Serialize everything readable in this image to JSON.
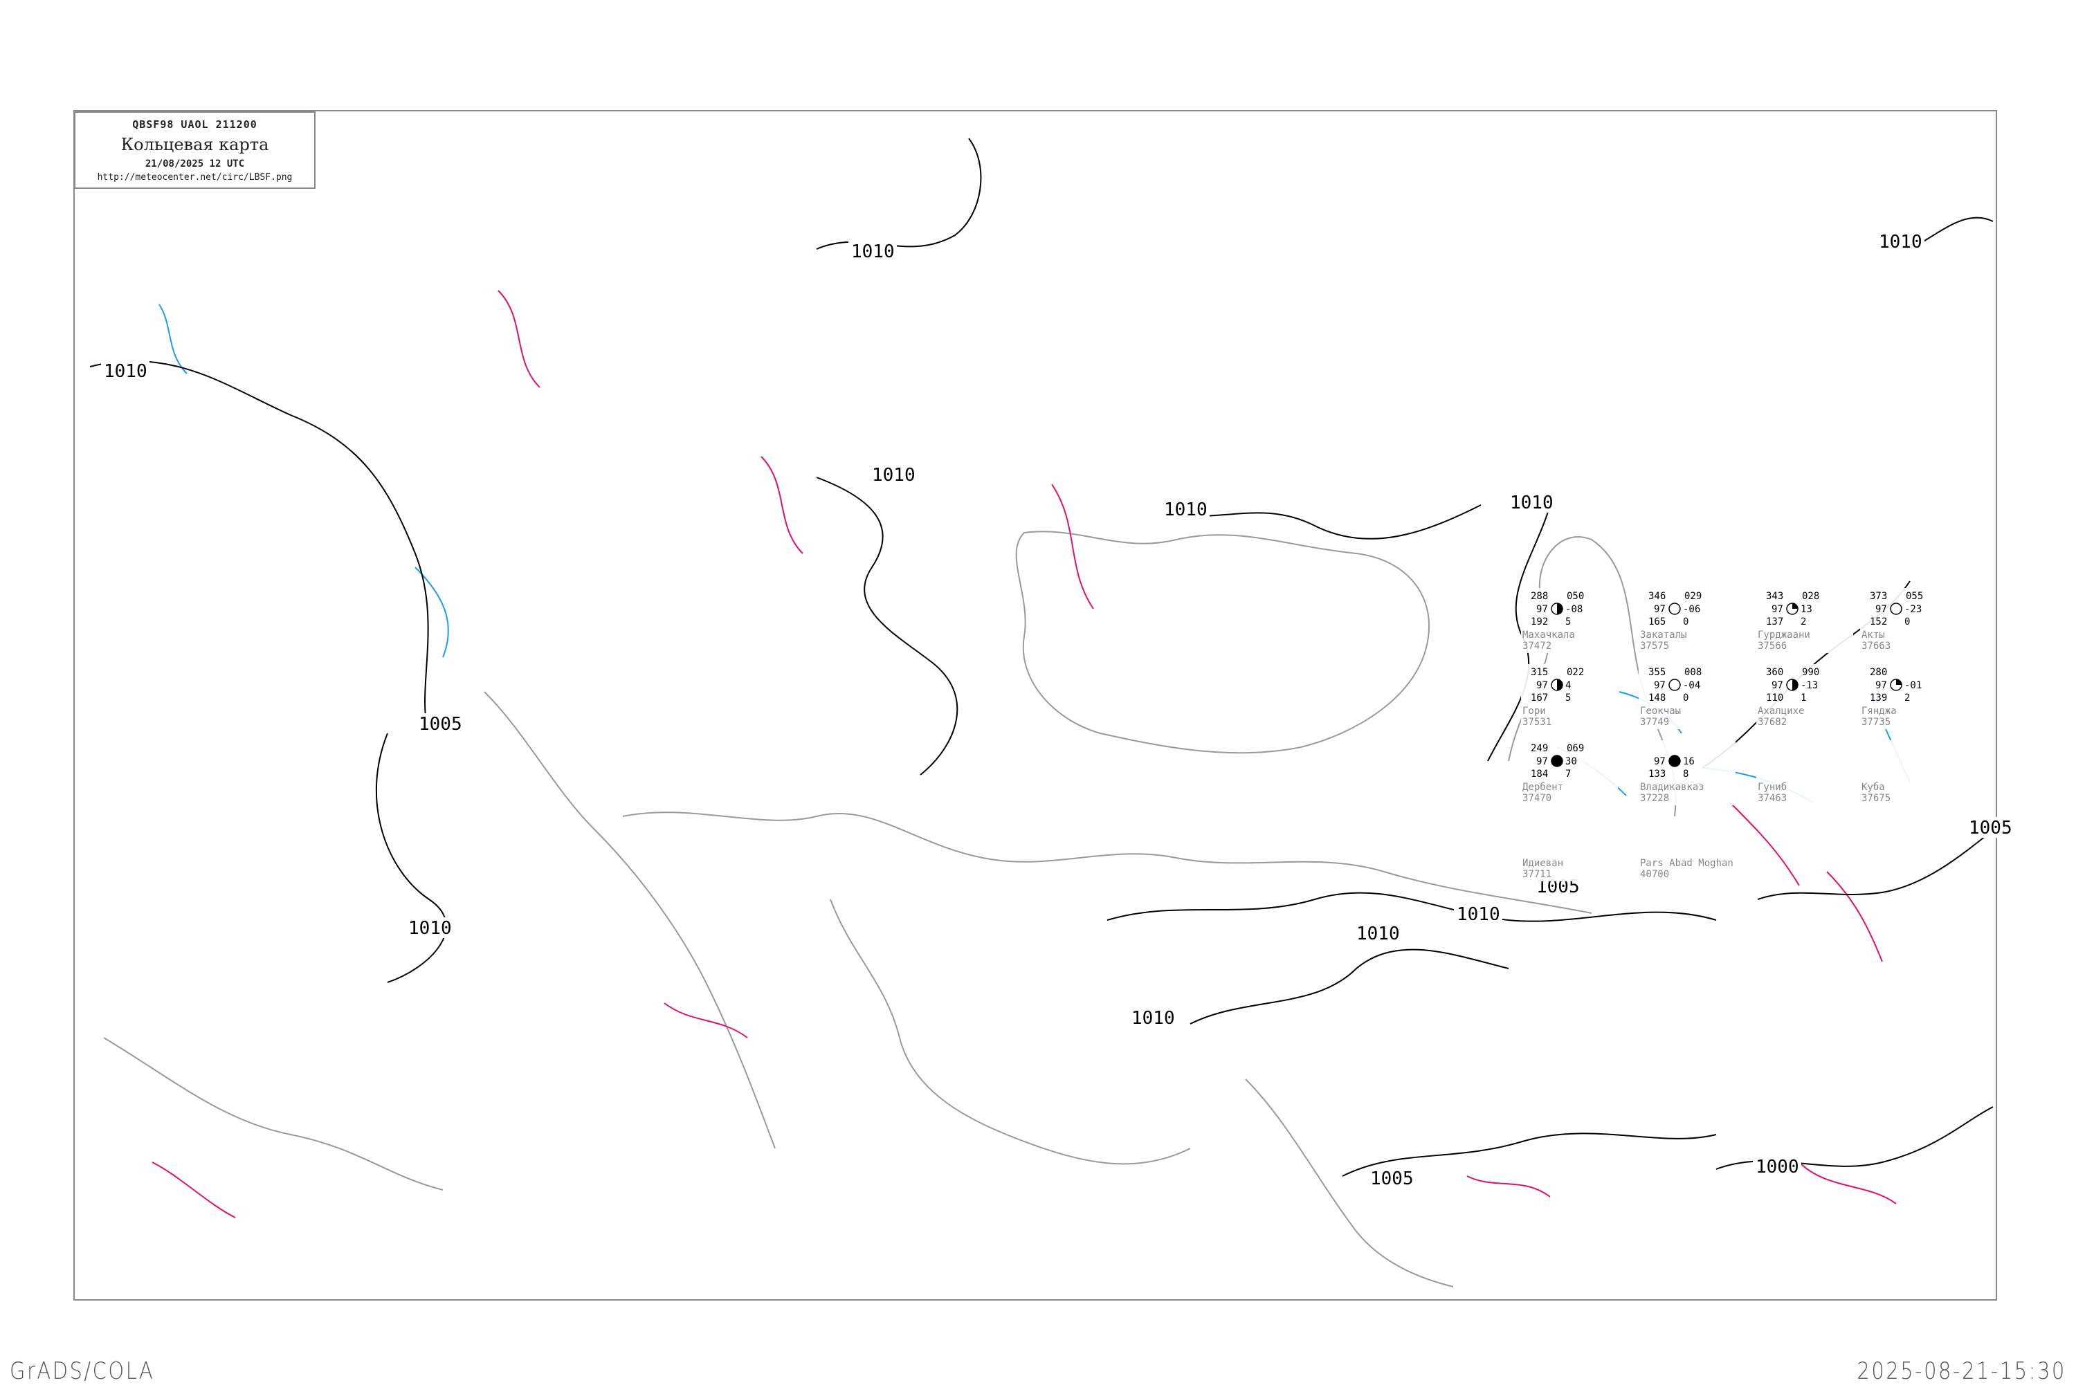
{
  "header": {
    "code": "QBSF98   UAOL   211200",
    "title": "Кольцевая карта",
    "datetime": "21/08/2025 12 UTC",
    "url": "http://meteocenter.net/circ/LBSF.png"
  },
  "footer": {
    "software": "GrADS/COLA",
    "timestamp": "2025-08-21-15:30"
  },
  "colors": {
    "isobar": "#000000",
    "coastline": "#999999",
    "rivers": "#1a9fe8",
    "isallobar": "#e0106e",
    "station_name": "#888888"
  },
  "isobar_labels": [
    "1010",
    "1010",
    "1010",
    "1010",
    "1010",
    "1010",
    "1010",
    "1010",
    "1010",
    "1005",
    "1005",
    "1005",
    "1005",
    "1010",
    "1000"
  ],
  "stations": [
    {
      "name": "Махачкала",
      "id": "37472",
      "t": "288",
      "td": "97",
      "p": "192",
      "pt": "-08",
      "tend": "5",
      "top": "050",
      "cover": "half"
    },
    {
      "name": "Закаталы",
      "id": "37575",
      "t": "346",
      "td": "97",
      "p": "165",
      "pt": "-06",
      "tend": "0",
      "top": "029",
      "cover": "clear"
    },
    {
      "name": "Гурджаани",
      "id": "37566",
      "t": "343",
      "td": "97",
      "p": "137",
      "pt": "13",
      "tend": "2",
      "top": "028",
      "cover": "quarter"
    },
    {
      "name": "Акты",
      "id": "37663",
      "t": "373",
      "td": "97",
      "p": "152",
      "pt": "-23",
      "tend": "0",
      "top": "055",
      "cover": "clear"
    },
    {
      "name": "Гори",
      "id": "37531",
      "t": "315",
      "td": "97",
      "p": "167",
      "pt": "4",
      "tend": "5",
      "top": "022",
      "cover": "half"
    },
    {
      "name": "Геокчаы",
      "id": "37749",
      "t": "355",
      "td": "97",
      "p": "148",
      "pt": "-04",
      "tend": "0",
      "top": "008",
      "cover": "clear"
    },
    {
      "name": "Ахалцихе",
      "id": "37682",
      "t": "360",
      "td": "97",
      "p": "110",
      "pt": "-13",
      "tend": "1",
      "top": "990",
      "cover": "half"
    },
    {
      "name": "Гянджа",
      "id": "37735",
      "t": "280",
      "td": "97",
      "p": "139",
      "pt": "-01",
      "tend": "2",
      "top": "",
      "cover": "quarter"
    },
    {
      "name": "Дербент",
      "id": "37470",
      "t": "249",
      "td": "97",
      "p": "184",
      "pt": "30",
      "tend": "7",
      "top": "069",
      "cover": "full"
    },
    {
      "name": "Владикавказ",
      "id": "37228",
      "t": "",
      "td": "97",
      "p": "133",
      "pt": "16",
      "tend": "8",
      "top": "",
      "cover": "full"
    },
    {
      "name": "Гуниб",
      "id": "37463",
      "t": "",
      "td": "",
      "p": "",
      "pt": "",
      "tend": "",
      "top": "",
      "cover": "none"
    },
    {
      "name": "Куба",
      "id": "37675",
      "t": "",
      "td": "",
      "p": "",
      "pt": "",
      "tend": "",
      "top": "",
      "cover": "none"
    },
    {
      "name": "Идиеван",
      "id": "37711",
      "t": "",
      "td": "",
      "p": "",
      "pt": "",
      "tend": "",
      "top": "",
      "cover": "none"
    },
    {
      "name": "Pars Abad Moghan",
      "id": "40700",
      "t": "",
      "td": "",
      "p": "",
      "pt": "",
      "tend": "",
      "top": "",
      "cover": "none"
    }
  ]
}
